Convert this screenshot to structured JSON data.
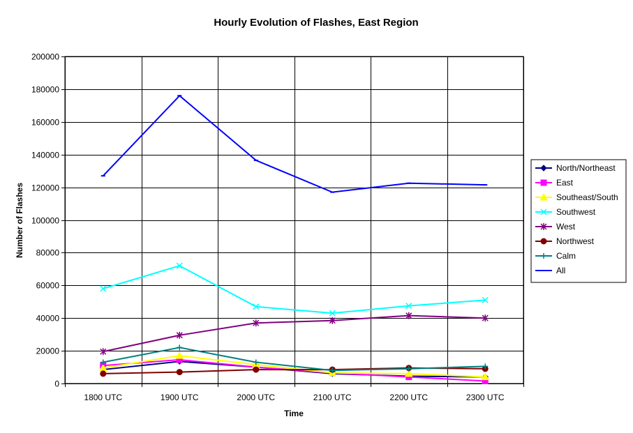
{
  "chart_data": {
    "type": "line",
    "title": "Hourly Evolution of Flashes, East Region",
    "xlabel": "Time",
    "ylabel": "Number of Flashes",
    "categories": [
      "1800 UTC",
      "1900 UTC",
      "2000 UTC",
      "2100 UTC",
      "2200 UTC",
      "2300 UTC"
    ],
    "ylim": [
      0,
      200000
    ],
    "yticks": [
      0,
      20000,
      40000,
      60000,
      80000,
      100000,
      120000,
      140000,
      160000,
      180000,
      200000
    ],
    "grid": true,
    "legend_position": "right",
    "series": [
      {
        "name": "North/Northeast",
        "color": "#000080",
        "marker": "diamond",
        "values": [
          8500,
          13500,
          10000,
          6000,
          4500,
          4000
        ]
      },
      {
        "name": "East",
        "color": "#FF00FF",
        "marker": "square",
        "values": [
          11000,
          14500,
          10000,
          6500,
          4000,
          1500
        ]
      },
      {
        "name": "Southeast/South",
        "color": "#FFFF00",
        "marker": "triangle",
        "values": [
          9500,
          17000,
          11500,
          6500,
          6000,
          4000
        ]
      },
      {
        "name": "Southwest",
        "color": "#00FFFF",
        "marker": "x",
        "values": [
          58000,
          72000,
          47000,
          43000,
          47500,
          51000
        ]
      },
      {
        "name": "West",
        "color": "#800080",
        "marker": "star",
        "values": [
          19500,
          29500,
          37000,
          38500,
          41500,
          40000
        ]
      },
      {
        "name": "Northwest",
        "color": "#800000",
        "marker": "circle",
        "values": [
          6000,
          7000,
          8500,
          8500,
          9500,
          9000
        ]
      },
      {
        "name": "Calm",
        "color": "#008080",
        "marker": "plus",
        "values": [
          13000,
          22000,
          13000,
          8000,
          9000,
          10500
        ]
      },
      {
        "name": "All",
        "color": "#0000FF",
        "marker": "dash",
        "values": [
          127000,
          176000,
          136500,
          117000,
          122500,
          121500
        ]
      }
    ]
  }
}
